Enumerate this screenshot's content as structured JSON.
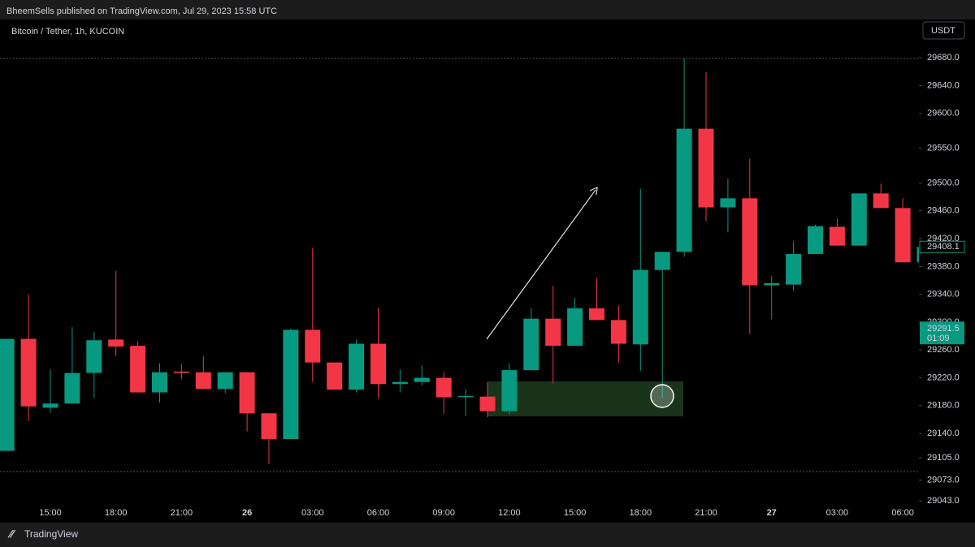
{
  "header": {
    "published": "BheemSells published on TradingView.com, Jul 29, 2023 15:58 UTC",
    "symbol": "Bitcoin / Tether, 1h, KUCOIN",
    "currency": "USDT",
    "logo": "TradingView"
  },
  "chart_data": {
    "type": "candlestick",
    "categories": [
      null,
      null,
      "15:00",
      null,
      null,
      "18:00",
      null,
      null,
      "21:00",
      null,
      null,
      "26",
      null,
      null,
      "03:00",
      null,
      null,
      "06:00",
      null,
      null,
      "09:00",
      null,
      null,
      "12:00",
      null,
      null,
      "15:00",
      null,
      null,
      "18:00",
      null,
      null,
      "21:00",
      null,
      null,
      "27",
      null,
      null,
      "03:00",
      null,
      null,
      "06:00",
      null
    ],
    "open": [
      29115,
      29276,
      29177,
      29183,
      29227,
      29275,
      29266,
      29199,
      29229,
      29228,
      29204,
      29228,
      29169,
      29132,
      29289,
      29242,
      29203,
      29269,
      29211,
      29214,
      29220,
      29193,
      29193,
      29172,
      29231,
      29305,
      29266,
      29320,
      29303,
      29268,
      29375,
      29401,
      29578,
      29465,
      29478,
      29353,
      29354,
      29398,
      29437,
      29410,
      29485,
      29464,
      29386
    ],
    "high": [
      29276,
      29340,
      29232,
      29293,
      29286,
      29374,
      29273,
      29241,
      29240,
      29251,
      29228,
      29228,
      29169,
      29291,
      29407,
      29242,
      29275,
      29321,
      29232,
      29238,
      29228,
      29204,
      29214,
      29241,
      29320,
      29352,
      29335,
      29363,
      29324,
      29492,
      29401,
      29679,
      29659,
      29506,
      29535,
      29366,
      29417,
      29440,
      29449,
      29485,
      29499,
      29478,
      29409
    ],
    "low": [
      29115,
      29158,
      29170,
      29183,
      29191,
      29251,
      29199,
      29184,
      29218,
      29204,
      29198,
      29143,
      29096,
      29132,
      29214,
      29203,
      29199,
      29191,
      29199,
      29209,
      29168,
      29165,
      29163,
      29168,
      29231,
      29212,
      29266,
      29303,
      29242,
      29230,
      29191,
      29394,
      29445,
      29429,
      29283,
      29304,
      29345,
      29398,
      29410,
      29410,
      29464,
      29386,
      29386
    ],
    "close": [
      29276,
      29179,
      29183,
      29227,
      29274,
      29265,
      29199,
      29228,
      29227,
      29204,
      29228,
      29169,
      29132,
      29289,
      29242,
      29203,
      29269,
      29211,
      29214,
      29220,
      29192,
      29194,
      29172,
      29231,
      29305,
      29266,
      29320,
      29303,
      29269,
      29375,
      29401,
      29578,
      29465,
      29478,
      29353,
      29356,
      29398,
      29438,
      29410,
      29485,
      29464,
      29386,
      29408.1
    ],
    "up_color": "#089981",
    "down_color": "#f23645",
    "ylim": [
      29013,
      29735
    ],
    "yticks": [
      {
        "value": 29680,
        "label": "29680.0"
      },
      {
        "value": 29640,
        "label": "29640.0"
      },
      {
        "value": 29600,
        "label": "29600.0"
      },
      {
        "value": 29550,
        "label": "29550.0"
      },
      {
        "value": 29500,
        "label": "29500.0"
      },
      {
        "value": 29460,
        "label": "29460.0"
      },
      {
        "value": 29420,
        "label": "29420.0"
      },
      {
        "value": 29380,
        "label": "29380.0"
      },
      {
        "value": 29340,
        "label": "29340.0"
      },
      {
        "value": 29300,
        "label": "29300.0"
      },
      {
        "value": 29260,
        "label": "29260.0"
      },
      {
        "value": 29220,
        "label": "29220.0"
      },
      {
        "value": 29180,
        "label": "29180.0"
      },
      {
        "value": 29140,
        "label": "29140.0"
      },
      {
        "value": 29105,
        "label": "29105.0"
      },
      {
        "value": 29073,
        "label": "29073.0"
      },
      {
        "value": 29043,
        "label": "29043.0"
      }
    ],
    "current_price": 29291.5,
    "countdown": "01:09"
  }
}
